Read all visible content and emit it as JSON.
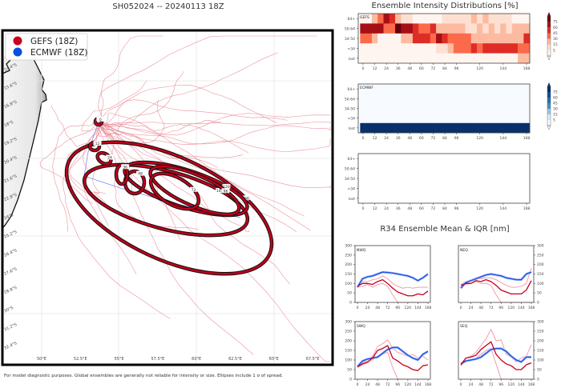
{
  "map": {
    "title": "SH052024 -- 20240113 18Z",
    "legend": [
      {
        "label": "GEFS (18Z)",
        "color": "#c8001e"
      },
      {
        "label": "ECMWF (18Z)",
        "color": "#0a4fe0"
      }
    ],
    "lat_labels": [
      "14.4°S",
      "15.6°S",
      "16.8°S",
      "18°S",
      "19.2°S",
      "20.4°S",
      "21.6°S",
      "22.8°S",
      "24°S",
      "25.2°S",
      "26.4°S",
      "27.6°S",
      "28.8°S",
      "30°S",
      "31.2°S",
      "32.4°S"
    ],
    "lon_labels": [
      "50°E",
      "52.5°E",
      "55°E",
      "57.5°E",
      "60°E",
      "62.5°E",
      "65°E",
      "67.5°E"
    ],
    "ellipse_labels": [
      "0",
      "12",
      "24",
      "36",
      "48",
      "72",
      "96",
      "120",
      "144",
      "168"
    ],
    "track_color": "#e8808c",
    "ellipse_color": "#c0001a",
    "footnote": "For model diagnostic purposes. Global ensembles are generally not reliable for intensity or size. Ellipses include 1 σ of spread."
  },
  "chart_data": [
    {
      "type": "heatmap",
      "title": "Ensemble Intensity Distributions [%]",
      "panel_label": "GEFS",
      "rows": [
        "64+",
        "50-64",
        "34-50",
        "<34",
        "lost"
      ],
      "x": [
        0,
        6,
        12,
        18,
        24,
        30,
        36,
        42,
        48,
        54,
        60,
        66,
        72,
        78,
        84,
        90,
        96,
        102,
        108,
        114,
        120,
        126,
        132,
        138,
        144,
        150,
        156,
        162,
        168
      ],
      "x_ticks": [
        0,
        12,
        24,
        36,
        48,
        60,
        72,
        84,
        96,
        120,
        144,
        168
      ],
      "colorbar_ticks": [
        75,
        60,
        45,
        30,
        15,
        5
      ],
      "colormap": "Reds",
      "values": [
        [
          2,
          2,
          20,
          40,
          65,
          50,
          20,
          10,
          10,
          2,
          2,
          2,
          2,
          2,
          10,
          10,
          10,
          10,
          10,
          20,
          10,
          20,
          10,
          10,
          10,
          10,
          2,
          2,
          2
        ],
        [
          65,
          65,
          65,
          65,
          40,
          40,
          80,
          65,
          65,
          50,
          40,
          40,
          50,
          25,
          25,
          25,
          25,
          25,
          10,
          10,
          25,
          10,
          25,
          10,
          25,
          10,
          25,
          25,
          25
        ],
        [
          40,
          40,
          25,
          2,
          2,
          2,
          2,
          25,
          25,
          50,
          50,
          50,
          40,
          65,
          50,
          40,
          40,
          40,
          40,
          25,
          25,
          25,
          25,
          25,
          25,
          25,
          25,
          25,
          50
        ],
        [
          2,
          2,
          2,
          2,
          2,
          2,
          2,
          2,
          2,
          2,
          2,
          2,
          2,
          10,
          10,
          25,
          40,
          40,
          40,
          50,
          40,
          50,
          50,
          50,
          50,
          50,
          50,
          40,
          40
        ],
        [
          2,
          2,
          2,
          2,
          2,
          2,
          2,
          2,
          2,
          2,
          2,
          2,
          2,
          2,
          2,
          2,
          2,
          2,
          2,
          2,
          2,
          2,
          2,
          2,
          2,
          2,
          2,
          20,
          20
        ]
      ]
    },
    {
      "type": "heatmap",
      "panel_label": "ECMWF",
      "rows": [
        "64+",
        "50-64",
        "34-50",
        "<34",
        "lost"
      ],
      "x": [
        0,
        6,
        12,
        18,
        24,
        30,
        36,
        42,
        48,
        54,
        60,
        66,
        72,
        78,
        84,
        90,
        96,
        102,
        108,
        114,
        120,
        126,
        132,
        138,
        144,
        150,
        156,
        162,
        168
      ],
      "x_ticks": [
        0,
        12,
        24,
        36,
        48,
        60,
        72,
        84,
        96,
        120,
        144,
        168
      ],
      "colorbar_ticks": [
        75,
        60,
        45,
        30,
        15,
        5
      ],
      "colormap": "Blues",
      "values": [
        [
          0,
          0,
          0,
          0,
          0,
          0,
          0,
          0,
          0,
          0,
          0,
          0,
          0,
          0,
          0,
          0,
          0,
          0,
          0,
          0,
          0,
          0,
          0,
          0,
          0,
          0,
          0,
          0,
          0
        ],
        [
          0,
          0,
          0,
          0,
          0,
          0,
          0,
          0,
          0,
          0,
          0,
          0,
          0,
          0,
          0,
          0,
          0,
          0,
          0,
          0,
          0,
          0,
          0,
          0,
          0,
          0,
          0,
          0,
          0
        ],
        [
          0,
          0,
          0,
          0,
          0,
          0,
          0,
          0,
          0,
          0,
          0,
          0,
          0,
          0,
          0,
          0,
          0,
          0,
          0,
          0,
          0,
          0,
          0,
          0,
          0,
          0,
          0,
          0,
          0
        ],
        [
          0,
          0,
          0,
          0,
          0,
          0,
          0,
          0,
          0,
          0,
          0,
          0,
          0,
          0,
          0,
          0,
          0,
          0,
          0,
          0,
          0,
          0,
          0,
          0,
          0,
          0,
          0,
          0,
          0
        ],
        [
          100,
          100,
          100,
          100,
          100,
          100,
          100,
          100,
          100,
          100,
          100,
          100,
          100,
          100,
          100,
          100,
          100,
          100,
          100,
          100,
          100,
          100,
          100,
          100,
          100,
          100,
          100,
          100,
          100
        ]
      ]
    },
    {
      "type": "heatmap",
      "panel_label": "",
      "rows": [
        "64+",
        "50-64",
        "34-50",
        "<34",
        "lost"
      ],
      "x_ticks": [
        0,
        12,
        24,
        36,
        48,
        60,
        72,
        84,
        96,
        120,
        144,
        168
      ],
      "values": []
    },
    {
      "type": "line",
      "title": "R34 Ensemble Mean & IQR [nm]",
      "x": [
        0,
        12,
        24,
        36,
        48,
        60,
        72,
        84,
        96,
        108,
        120,
        132,
        144,
        156,
        168
      ],
      "x_ticks": [
        0,
        24,
        48,
        72,
        96,
        120,
        144,
        168
      ],
      "y_ticks": [
        0,
        50,
        100,
        150,
        200,
        250,
        300
      ],
      "ylim": [
        0,
        300
      ],
      "panels": [
        {
          "label": "NWQ",
          "gefs_mean": [
            85,
            100,
            100,
            95,
            110,
            120,
            100,
            75,
            55,
            45,
            35,
            35,
            45,
            40,
            60
          ],
          "gefs_q75": [
            85,
            110,
            110,
            120,
            125,
            140,
            125,
            100,
            85,
            75,
            80,
            75,
            80,
            80,
            80
          ],
          "gefs_q25": [
            80,
            85,
            95,
            80,
            95,
            100,
            85,
            40,
            0,
            0,
            0,
            0,
            0,
            0,
            0
          ],
          "ecmwf_mean": [
            80,
            125,
            135,
            140,
            150,
            160,
            158,
            155,
            150,
            145,
            140,
            130,
            115,
            130,
            150
          ]
        },
        {
          "label": "NEQ",
          "gefs_mean": [
            90,
            100,
            100,
            115,
            110,
            120,
            110,
            90,
            65,
            55,
            45,
            45,
            45,
            65,
            115
          ],
          "gefs_q75": [
            95,
            110,
            115,
            125,
            125,
            130,
            130,
            120,
            105,
            90,
            80,
            80,
            85,
            100,
            180
          ],
          "gefs_q25": [
            85,
            95,
            100,
            110,
            100,
            100,
            90,
            40,
            0,
            0,
            0,
            0,
            0,
            0,
            0
          ],
          "ecmwf_mean": [
            75,
            105,
            115,
            125,
            135,
            145,
            150,
            145,
            140,
            130,
            125,
            120,
            120,
            150,
            160
          ]
        },
        {
          "label": "SWQ",
          "gefs_mean": [
            65,
            80,
            90,
            110,
            150,
            160,
            175,
            110,
            95,
            75,
            65,
            50,
            45,
            70,
            75
          ],
          "gefs_q75": [
            65,
            85,
            100,
            120,
            170,
            185,
            205,
            160,
            140,
            130,
            120,
            130,
            110,
            120,
            100
          ],
          "gefs_q25": [
            60,
            75,
            85,
            100,
            120,
            130,
            140,
            60,
            0,
            0,
            0,
            0,
            0,
            0,
            0
          ],
          "ecmwf_mean": [
            65,
            95,
            105,
            110,
            115,
            135,
            155,
            165,
            165,
            145,
            125,
            110,
            100,
            130,
            145
          ]
        },
        {
          "label": "SEQ",
          "gefs_mean": [
            75,
            110,
            115,
            125,
            155,
            175,
            195,
            130,
            100,
            80,
            70,
            50,
            50,
            75,
            85
          ],
          "gefs_q75": [
            80,
            110,
            120,
            140,
            175,
            210,
            260,
            200,
            205,
            130,
            115,
            90,
            110,
            120,
            180
          ],
          "gefs_q25": [
            70,
            95,
            100,
            110,
            130,
            150,
            160,
            80,
            0,
            0,
            0,
            0,
            0,
            0,
            0
          ],
          "ecmwf_mean": [
            80,
            95,
            100,
            105,
            115,
            135,
            155,
            160,
            160,
            145,
            120,
            100,
            90,
            115,
            115
          ]
        }
      ],
      "colors": {
        "gefs": "#c8001e",
        "gefs_iqr": "#f0a0a8",
        "ecmwf": "#1f55e8"
      }
    }
  ]
}
